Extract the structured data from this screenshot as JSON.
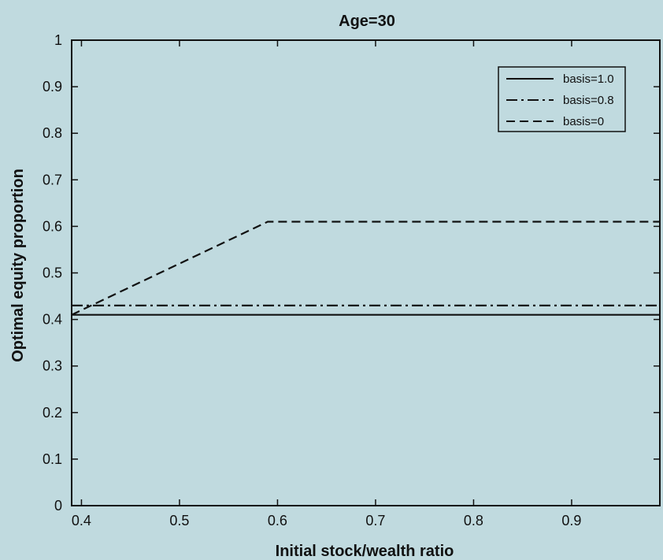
{
  "chart_data": {
    "type": "line",
    "title": "Age=30",
    "xlabel": "Initial stock/wealth ratio",
    "ylabel": "Optimal equity proportion",
    "xlim": [
      0.39,
      0.99
    ],
    "ylim": [
      0,
      1
    ],
    "xticks": [
      0.4,
      0.5,
      0.6,
      0.7,
      0.8,
      0.9
    ],
    "xtick_labels": [
      "0.4",
      "0.5",
      "0.6",
      "0.7",
      "0.8",
      "0.9"
    ],
    "yticks": [
      0,
      0.1,
      0.2,
      0.3,
      0.4,
      0.5,
      0.6,
      0.7,
      0.8,
      0.9,
      1
    ],
    "ytick_labels": [
      "0",
      "0.1",
      "0.2",
      "0.3",
      "0.4",
      "0.5",
      "0.6",
      "0.7",
      "0.8",
      "0.9",
      "1"
    ],
    "grid": false,
    "legend_position": "top-right",
    "series": [
      {
        "name": "basis=1.0",
        "style": "solid",
        "color": "#111111",
        "x": [
          0.39,
          0.99
        ],
        "y": [
          0.41,
          0.41
        ]
      },
      {
        "name": "basis=0.8",
        "style": "dashdot",
        "color": "#111111",
        "x": [
          0.39,
          0.99
        ],
        "y": [
          0.43,
          0.43
        ]
      },
      {
        "name": "basis=0",
        "style": "dashed",
        "color": "#111111",
        "x": [
          0.39,
          0.59,
          0.99
        ],
        "y": [
          0.41,
          0.61,
          0.61
        ]
      }
    ]
  }
}
